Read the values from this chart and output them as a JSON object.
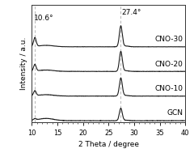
{
  "title": "",
  "xlabel": "2 Theta / degree",
  "ylabel": "Intensity / a.u.",
  "xlim": [
    10,
    40
  ],
  "ylim": [
    -0.05,
    5.2
  ],
  "series_labels": [
    "GCN",
    "CNO-10",
    "CNO-20",
    "CNO-30"
  ],
  "offsets": [
    0.0,
    1.1,
    2.2,
    3.3
  ],
  "peak1_x": 10.6,
  "peak2_x": 27.4,
  "peak1_label": "10.6°",
  "peak2_label": "27.4°",
  "line_color": "#1a1a1a",
  "dashed_color": "#aaaaaa",
  "bg_color": "#ffffff",
  "label_fontsize": 6.5,
  "tick_fontsize": 6,
  "annotation_fontsize": 6.5,
  "curve_params": [
    [
      0.06,
      0.55,
      0.1,
      0.007
    ],
    [
      0.22,
      0.8,
      0.06,
      0.006
    ],
    [
      0.3,
      0.88,
      0.06,
      0.006
    ],
    [
      0.4,
      0.92,
      0.06,
      0.005
    ]
  ]
}
